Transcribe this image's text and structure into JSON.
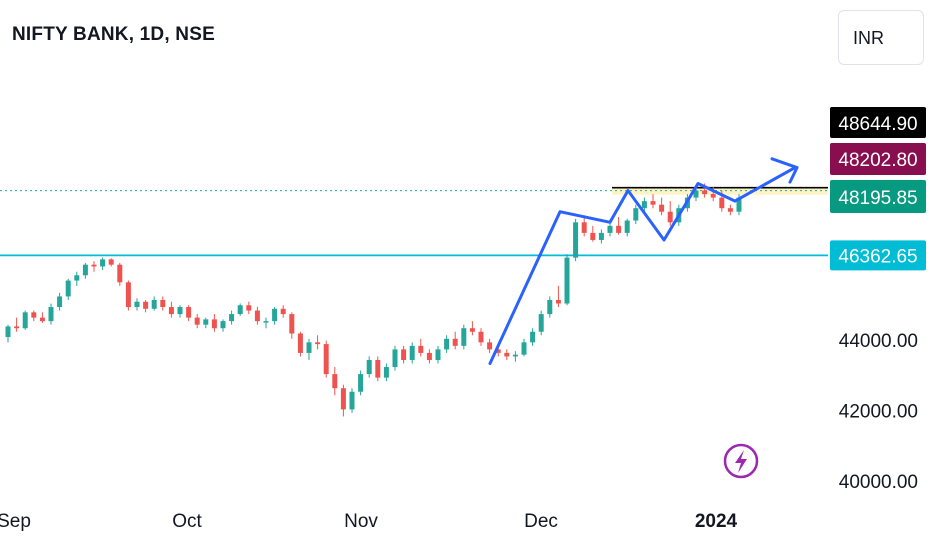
{
  "header": {
    "title": "NIFTY BANK, 1D, NSE",
    "currency": "INR"
  },
  "icons": {
    "bolt": "lightning-bolt-icon"
  },
  "colors": {
    "up": "#26a69a",
    "down": "#ef5350",
    "trend": "#2962ff",
    "support": "#00bcd4",
    "resistance": "#000000",
    "zone": "#fff3c4",
    "badge_high": "#000000",
    "badge_mid": "#880e4f",
    "badge_last": "#089981",
    "badge_support": "#00bcd4",
    "bolt": "#9c27b0"
  },
  "chart_data": {
    "type": "candlestick",
    "ylim": [
      40000,
      49500
    ],
    "y_ticks": [
      "44000.00",
      "42000.00",
      "40000.00"
    ],
    "x_ticks": [
      "Sep",
      "Oct",
      "Nov",
      "Dec",
      "2024"
    ],
    "price_labels": {
      "high": "48644.90",
      "mid": "48202.80",
      "last": "48195.85",
      "support": "46362.65"
    },
    "support_level": 46362.65,
    "resistance_level": 48280,
    "last_price": 48195.85,
    "candles": [
      [
        44050,
        44400,
        43900,
        44350
      ],
      [
        44350,
        44600,
        44200,
        44300
      ],
      [
        44300,
        44800,
        44250,
        44750
      ],
      [
        44750,
        44800,
        44500,
        44600
      ],
      [
        44600,
        44750,
        44450,
        44500
      ],
      [
        44500,
        45000,
        44400,
        44900
      ],
      [
        44900,
        45300,
        44800,
        45200
      ],
      [
        45200,
        45700,
        45100,
        45650
      ],
      [
        45650,
        45900,
        45500,
        45800
      ],
      [
        45800,
        46150,
        45700,
        46100
      ],
      [
        46100,
        46200,
        45900,
        46050
      ],
      [
        46050,
        46300,
        45950,
        46250
      ],
      [
        46250,
        46280,
        46050,
        46100
      ],
      [
        46100,
        46150,
        45500,
        45600
      ],
      [
        45600,
        45650,
        44800,
        44900
      ],
      [
        44900,
        45150,
        44800,
        45050
      ],
      [
        45050,
        45100,
        44750,
        44850
      ],
      [
        44850,
        45200,
        44800,
        45100
      ],
      [
        45100,
        45200,
        44800,
        44900
      ],
      [
        44900,
        45050,
        44600,
        44700
      ],
      [
        44700,
        44950,
        44600,
        44900
      ],
      [
        44900,
        44950,
        44500,
        44600
      ],
      [
        44600,
        44700,
        44300,
        44400
      ],
      [
        44400,
        44600,
        44300,
        44550
      ],
      [
        44550,
        44700,
        44200,
        44300
      ],
      [
        44300,
        44550,
        44200,
        44500
      ],
      [
        44500,
        44800,
        44400,
        44700
      ],
      [
        44700,
        45000,
        44650,
        44950
      ],
      [
        44950,
        45050,
        44700,
        44800
      ],
      [
        44800,
        44900,
        44400,
        44500
      ],
      [
        44500,
        44600,
        44300,
        44500
      ],
      [
        44500,
        44900,
        44400,
        44850
      ],
      [
        44850,
        44950,
        44600,
        44700
      ],
      [
        44700,
        44750,
        44000,
        44150
      ],
      [
        44150,
        44200,
        43500,
        43600
      ],
      [
        43600,
        44000,
        43400,
        43900
      ],
      [
        43900,
        44100,
        43700,
        43850
      ],
      [
        43850,
        43950,
        42900,
        43000
      ],
      [
        43000,
        43200,
        42400,
        42600
      ],
      [
        42600,
        42700,
        41800,
        42000
      ],
      [
        42000,
        42600,
        41900,
        42500
      ],
      [
        42500,
        43100,
        42400,
        43000
      ],
      [
        43000,
        43500,
        42900,
        43400
      ],
      [
        43400,
        43500,
        42800,
        42900
      ],
      [
        42900,
        43300,
        42800,
        43200
      ],
      [
        43200,
        43800,
        43100,
        43700
      ],
      [
        43700,
        43800,
        43300,
        43400
      ],
      [
        43400,
        43900,
        43300,
        43800
      ],
      [
        43800,
        44000,
        43500,
        43600
      ],
      [
        43600,
        43700,
        43300,
        43400
      ],
      [
        43400,
        43800,
        43300,
        43700
      ],
      [
        43700,
        44100,
        43600,
        44000
      ],
      [
        44000,
        44200,
        43700,
        43800
      ],
      [
        43800,
        44400,
        43700,
        44300
      ],
      [
        44300,
        44500,
        44100,
        44200
      ],
      [
        44200,
        44300,
        43800,
        43900
      ],
      [
        43900,
        44000,
        43600,
        43700
      ],
      [
        43700,
        43800,
        43500,
        43600
      ],
      [
        43600,
        43700,
        43400,
        43500
      ],
      [
        43500,
        43650,
        43350,
        43550
      ],
      [
        43550,
        44000,
        43500,
        43900
      ],
      [
        43900,
        44300,
        43800,
        44200
      ],
      [
        44200,
        44800,
        44100,
        44700
      ],
      [
        44700,
        45200,
        44600,
        45100
      ],
      [
        45100,
        45500,
        44900,
        45000
      ],
      [
        45000,
        46400,
        44950,
        46300
      ],
      [
        46300,
        47400,
        46200,
        47300
      ],
      [
        47300,
        47500,
        46900,
        47000
      ],
      [
        47000,
        47200,
        46750,
        46800
      ],
      [
        46800,
        47100,
        46700,
        47000
      ],
      [
        47000,
        47300,
        46900,
        47200
      ],
      [
        47200,
        47450,
        46950,
        47000
      ],
      [
        47000,
        47400,
        46900,
        47350
      ],
      [
        47350,
        47800,
        47250,
        47700
      ],
      [
        47700,
        48000,
        47600,
        47900
      ],
      [
        47900,
        48100,
        47700,
        47800
      ],
      [
        47800,
        48000,
        47500,
        47600
      ],
      [
        47600,
        47900,
        47200,
        47300
      ],
      [
        47300,
        47800,
        47200,
        47700
      ],
      [
        47700,
        48100,
        47600,
        48000
      ],
      [
        48000,
        48350,
        47900,
        48200
      ],
      [
        48200,
        48400,
        48000,
        48100
      ],
      [
        48100,
        48300,
        47900,
        48000
      ],
      [
        48000,
        48200,
        47600,
        47700
      ],
      [
        47700,
        47800,
        47500,
        47600
      ],
      [
        47600,
        48100,
        47500,
        48000
      ]
    ]
  }
}
